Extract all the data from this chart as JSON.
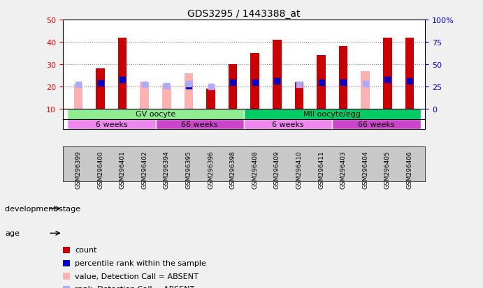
{
  "title": "GDS3295 / 1443388_at",
  "samples": [
    "GSM296399",
    "GSM296400",
    "GSM296401",
    "GSM296402",
    "GSM296394",
    "GSM296395",
    "GSM296396",
    "GSM296398",
    "GSM296408",
    "GSM296409",
    "GSM296410",
    "GSM296411",
    "GSM296403",
    "GSM296404",
    "GSM296405",
    "GSM296406"
  ],
  "count": [
    null,
    28,
    42,
    null,
    null,
    null,
    19,
    30,
    35,
    41,
    22,
    34,
    38,
    null,
    42,
    42
  ],
  "count_absent": [
    21,
    null,
    null,
    22,
    21,
    26,
    null,
    null,
    null,
    null,
    null,
    null,
    null,
    27,
    null,
    null
  ],
  "percentile": [
    null,
    29,
    33,
    null,
    null,
    26,
    null,
    30,
    30,
    31,
    null,
    30,
    30,
    null,
    33,
    31
  ],
  "percentile_absent": [
    27,
    null,
    null,
    27,
    26,
    28,
    25,
    null,
    null,
    null,
    27,
    null,
    null,
    28,
    null,
    null
  ],
  "ylim_left": [
    10,
    50
  ],
  "ylim_right": [
    0,
    100
  ],
  "yticks_left": [
    10,
    20,
    30,
    40,
    50
  ],
  "yticks_right": [
    0,
    25,
    50,
    75,
    100
  ],
  "ytick_labels_right": [
    "0",
    "25",
    "50",
    "75",
    "100%"
  ],
  "bar_color_count": "#cc0000",
  "bar_color_absent": "#ffb0b0",
  "dot_color_present": "#0000cc",
  "dot_color_absent": "#aaaaff",
  "bg_color": "#f0f0f0",
  "plot_bg": "#ffffff",
  "dev_stage_groups": [
    {
      "label": "GV oocyte",
      "start": 0,
      "end": 8,
      "color": "#90ee90"
    },
    {
      "label": "MII oocyte/egg",
      "start": 8,
      "end": 16,
      "color": "#00cc66"
    }
  ],
  "age_groups": [
    {
      "label": "6 weeks",
      "start": 0,
      "end": 4,
      "color": "#ee88ee"
    },
    {
      "label": "66 weeks",
      "start": 4,
      "end": 8,
      "color": "#cc44cc"
    },
    {
      "label": "6 weeks",
      "start": 8,
      "end": 12,
      "color": "#ee88ee"
    },
    {
      "label": "66 weeks",
      "start": 12,
      "end": 16,
      "color": "#cc44cc"
    }
  ],
  "legend_items": [
    {
      "color": "#cc0000",
      "label": "count"
    },
    {
      "color": "#0000cc",
      "label": "percentile rank within the sample"
    },
    {
      "color": "#ffb0b0",
      "label": "value, Detection Call = ABSENT"
    },
    {
      "color": "#aaaaff",
      "label": "rank, Detection Call = ABSENT"
    }
  ],
  "dev_stage_label": "development stage",
  "age_label": "age",
  "bar_width": 0.4
}
